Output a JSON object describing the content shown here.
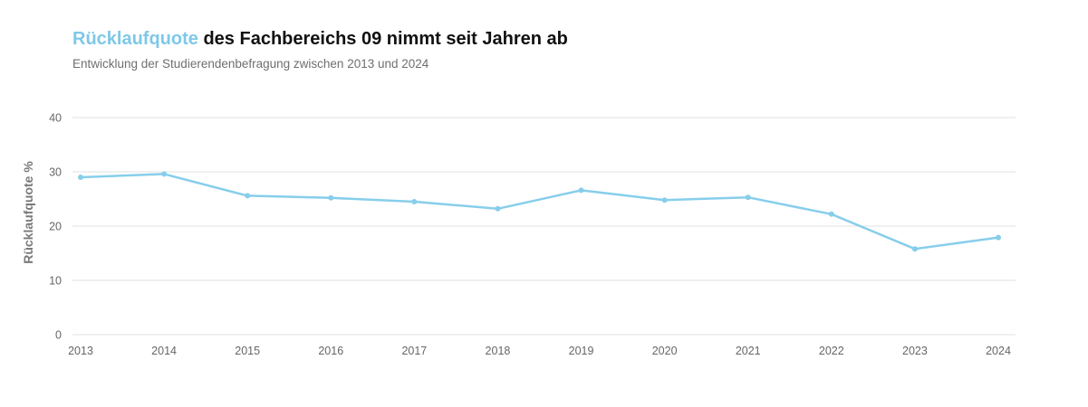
{
  "header": {
    "title_highlight": "Rücklaufquote",
    "title_rest": " des Fachbereichs 09 nimmt seit Jahren ab",
    "subtitle": "Entwicklung der Studierendenbefragung zwischen 2013 und 2024"
  },
  "colors": {
    "accent": "#7ec8e8",
    "line": "#87ceeb",
    "grid": "#e2e2e2"
  },
  "chart_data": {
    "type": "line",
    "title": "Rücklaufquote des Fachbereichs 09 nimmt seit Jahren ab",
    "subtitle": "Entwicklung der Studierendenbefragung zwischen 2013 und 2024",
    "ylabel": "Rücklaufquote %",
    "xlabel": "",
    "x": [
      "2013",
      "2014",
      "2015",
      "2016",
      "2017",
      "2018",
      "2019",
      "2020",
      "2021",
      "2022",
      "2023",
      "2024"
    ],
    "y_ticks": [
      "0",
      "10",
      "20",
      "30",
      "40"
    ],
    "ylim": [
      0,
      40
    ],
    "grid": true,
    "legend": "none",
    "series": [
      {
        "values": [
          29.0,
          29.6,
          25.6,
          25.2,
          24.5,
          23.2,
          26.6,
          24.8,
          25.3,
          22.2,
          15.8,
          17.9
        ]
      }
    ]
  }
}
